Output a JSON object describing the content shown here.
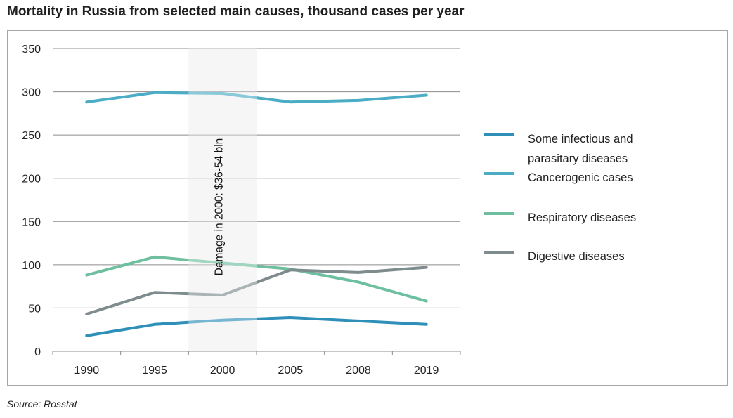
{
  "header": {
    "title": "Mortality in Russia from selected main causes, thousand cases per year"
  },
  "footer": {
    "source": "Source: Rosstat"
  },
  "chart_data": {
    "type": "line",
    "title": "Mortality in Russia from selected main causes, thousand cases per year",
    "xlabel": "",
    "ylabel": "",
    "categories": [
      "1990",
      "1995",
      "2000",
      "2005",
      "2008",
      "2019"
    ],
    "yticks": [
      "0",
      "50",
      "100",
      "150",
      "200",
      "250",
      "300",
      "350"
    ],
    "ylim": [
      0,
      350
    ],
    "grid": "horizontal",
    "legend_position": "right",
    "series": [
      {
        "name": "Some infectious and parasitary diseases",
        "legend_lines": [
          "Some infectious and",
          "parasitary diseases"
        ],
        "color": "#2e8fb8",
        "values": [
          18,
          31,
          36,
          39,
          35,
          31
        ]
      },
      {
        "name": "Cancerogenic cases",
        "legend_lines": [
          "Cancerogenic cases"
        ],
        "color": "#4aacc5",
        "values": [
          288,
          299,
          298,
          288,
          290,
          296
        ]
      },
      {
        "name": "Respiratory diseases",
        "legend_lines": [
          "Respiratory diseases"
        ],
        "color": "#6dbf9f",
        "values": [
          88,
          109,
          102,
          95,
          80,
          58
        ]
      },
      {
        "name": "Digestive diseases",
        "legend_lines": [
          "Digestive diseases"
        ],
        "color": "#7f8c8d",
        "values": [
          43,
          68,
          65,
          94,
          91,
          97
        ]
      }
    ],
    "highlight": {
      "category": "2000",
      "label": "Damage  in 2000:  $36-54 bln",
      "fill": "#f1f1f1"
    }
  }
}
